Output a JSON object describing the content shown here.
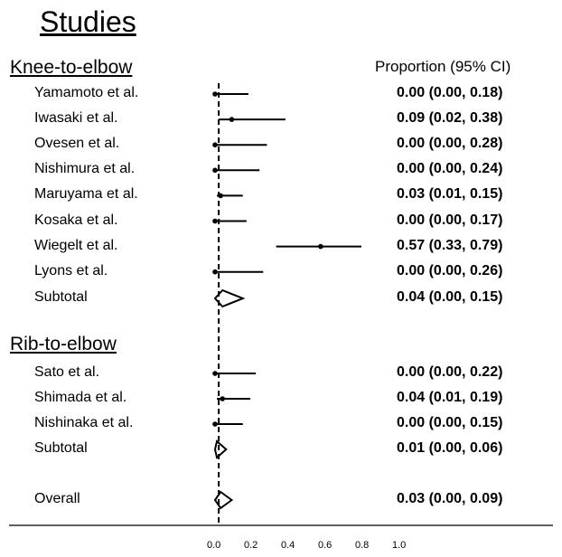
{
  "title": "Studies",
  "column_header": "Proportion (95% CI)",
  "chart_data": {
    "type": "forest",
    "x_ticks": [
      "0.0",
      "0.2",
      "0.4",
      "0.6",
      "0.8",
      "1.0"
    ],
    "xlim": [
      0,
      1
    ],
    "reference_line": 0.02,
    "groups": [
      {
        "name": "Knee-to-elbow",
        "studies": [
          {
            "label": "Yamamoto et al.",
            "est": 0.0,
            "lo": 0.0,
            "hi": 0.18,
            "text": "0.00 (0.00, 0.18)"
          },
          {
            "label": "Iwasaki et al.",
            "est": 0.09,
            "lo": 0.02,
            "hi": 0.38,
            "text": "0.09 (0.02, 0.38)"
          },
          {
            "label": "Ovesen et al.",
            "est": 0.0,
            "lo": 0.0,
            "hi": 0.28,
            "text": "0.00 (0.00, 0.28)"
          },
          {
            "label": "Nishimura et al.",
            "est": 0.0,
            "lo": 0.0,
            "hi": 0.24,
            "text": "0.00 (0.00, 0.24)"
          },
          {
            "label": "Maruyama et al.",
            "est": 0.03,
            "lo": 0.01,
            "hi": 0.15,
            "text": "0.03 (0.01, 0.15)"
          },
          {
            "label": "Kosaka et al.",
            "est": 0.0,
            "lo": 0.0,
            "hi": 0.17,
            "text": "0.00 (0.00, 0.17)"
          },
          {
            "label": "Wiegelt et al.",
            "est": 0.57,
            "lo": 0.33,
            "hi": 0.79,
            "text": "0.57 (0.33, 0.79)"
          },
          {
            "label": "Lyons et al.",
            "est": 0.0,
            "lo": 0.0,
            "hi": 0.26,
            "text": "0.00 (0.00, 0.26)"
          }
        ],
        "subtotal": {
          "label": "Subtotal",
          "est": 0.04,
          "lo": 0.0,
          "hi": 0.15,
          "text": "0.04 (0.00, 0.15)"
        }
      },
      {
        "name": "Rib-to-elbow",
        "studies": [
          {
            "label": "Sato et al.",
            "est": 0.0,
            "lo": 0.0,
            "hi": 0.22,
            "text": "0.00 (0.00, 0.22)"
          },
          {
            "label": "Shimada et al.",
            "est": 0.04,
            "lo": 0.01,
            "hi": 0.19,
            "text": "0.04 (0.01, 0.19)"
          },
          {
            "label": "Nishinaka et al.",
            "est": 0.0,
            "lo": 0.0,
            "hi": 0.15,
            "text": "0.00 (0.00, 0.15)"
          }
        ],
        "subtotal": {
          "label": "Subtotal",
          "est": 0.01,
          "lo": 0.0,
          "hi": 0.06,
          "text": "0.01 (0.00, 0.06)"
        }
      }
    ],
    "overall": {
      "label": "Overall",
      "est": 0.03,
      "lo": 0.0,
      "hi": 0.09,
      "text": "0.03 (0.00, 0.09)"
    }
  }
}
